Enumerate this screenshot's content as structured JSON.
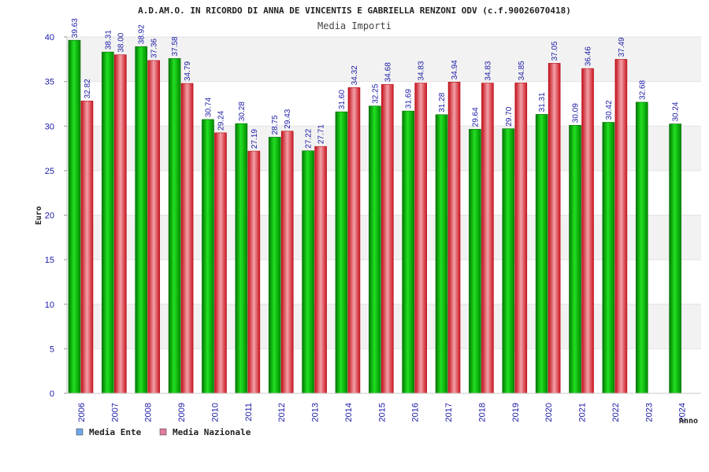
{
  "chart_data": {
    "type": "bar",
    "title": "A.D.AM.O. IN RICORDO DI ANNA DE VINCENTIS E GABRIELLA RENZONI ODV (c.f.90026070418)",
    "subtitle": "Media Importi",
    "xlabel": "Anno",
    "ylabel": "Euro",
    "ylim": [
      0,
      40
    ],
    "yticks": [
      0,
      5,
      10,
      15,
      20,
      25,
      30,
      35,
      40
    ],
    "grid": true,
    "legend_position": "bottom-left",
    "categories": [
      "2006",
      "2007",
      "2008",
      "2009",
      "2010",
      "2011",
      "2012",
      "2013",
      "2014",
      "2015",
      "2016",
      "2017",
      "2018",
      "2019",
      "2020",
      "2021",
      "2022",
      "2023",
      "2024"
    ],
    "series": [
      {
        "name": "Media Ente",
        "color": "#00b000",
        "legend_color": "#6fa8ea",
        "values": [
          39.63,
          38.31,
          38.92,
          37.58,
          30.74,
          30.28,
          28.75,
          27.22,
          31.6,
          32.25,
          31.69,
          31.28,
          29.64,
          29.7,
          31.31,
          30.09,
          30.42,
          32.68,
          30.24
        ],
        "labels": [
          "39.63",
          "38.31",
          "38.92",
          "37.58",
          "30.74",
          "30.28",
          "28.75",
          "27.22",
          "31.60",
          "32.25",
          "31.69",
          "31.28",
          "29.64",
          "29.70",
          "31.31",
          "30.09",
          "30.42",
          "32.68",
          "30.24"
        ]
      },
      {
        "name": "Media Nazionale",
        "color": "#e0242c",
        "legend_color": "#e07aa0",
        "values": [
          32.82,
          38.0,
          37.36,
          34.79,
          29.24,
          27.19,
          29.43,
          27.71,
          34.32,
          34.68,
          34.83,
          34.94,
          34.83,
          34.85,
          37.05,
          36.46,
          37.49,
          null,
          null
        ],
        "labels": [
          "32.82",
          "38.00",
          "37.36",
          "34.79",
          "29.24",
          "27.19",
          "29.43",
          "27.71",
          "34.32",
          "34.68",
          "34.83",
          "34.94",
          "34.83",
          "34.85",
          "37.05",
          "36.46",
          "37.49",
          null,
          null
        ]
      }
    ]
  }
}
